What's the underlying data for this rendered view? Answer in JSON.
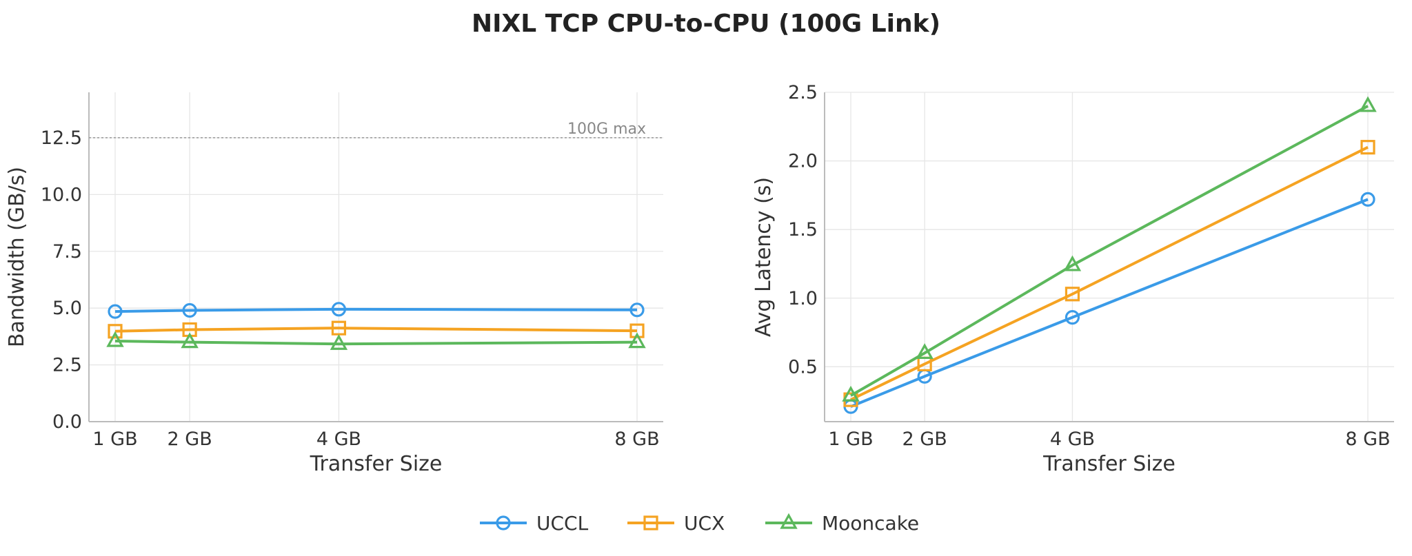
{
  "figure": {
    "title": "NIXL TCP CPU-to-CPU (100G Link)"
  },
  "colors": {
    "UCCL": "#3a9be8",
    "UCX": "#f5a322",
    "Mooncake": "#5cb85c"
  },
  "legend": {
    "placement": "bottom-center",
    "entries": [
      "UCCL",
      "UCX",
      "Mooncake"
    ]
  },
  "chart_data": [
    {
      "type": "line",
      "xlabel": "Transfer Size",
      "ylabel": "Bandwidth (GB/s)",
      "x": [
        1,
        2,
        4,
        8
      ],
      "xticklabels": [
        "1 GB",
        "2 GB",
        "4 GB",
        "8 GB"
      ],
      "ylim": [
        0,
        14.5
      ],
      "yticks": [
        0,
        2.5,
        5,
        7.5,
        10,
        12.5
      ],
      "yticklabels": [
        "0.0",
        "2.5",
        "5.0",
        "7.5",
        "10.0",
        "12.5"
      ],
      "grid": true,
      "reference_line": {
        "y": 12.5,
        "label": "100G max"
      },
      "series": [
        {
          "name": "UCCL",
          "marker": "circle",
          "values": [
            4.85,
            4.9,
            4.95,
            4.92
          ]
        },
        {
          "name": "UCX",
          "marker": "square",
          "values": [
            3.98,
            4.05,
            4.12,
            4.0
          ]
        },
        {
          "name": "Mooncake",
          "marker": "triangle",
          "values": [
            3.55,
            3.5,
            3.42,
            3.5
          ]
        }
      ]
    },
    {
      "type": "line",
      "xlabel": "Transfer Size",
      "ylabel": "Avg Latency (s)",
      "x": [
        1,
        2,
        4,
        8
      ],
      "xticklabels": [
        "1 GB",
        "2 GB",
        "4 GB",
        "8 GB"
      ],
      "ylim": [
        0.1,
        2.5
      ],
      "yticks": [
        0.5,
        1.0,
        1.5,
        2.0,
        2.5
      ],
      "yticklabels": [
        "0.5",
        "1.0",
        "1.5",
        "2.0",
        "2.5"
      ],
      "grid": true,
      "series": [
        {
          "name": "UCCL",
          "marker": "circle",
          "values": [
            0.21,
            0.43,
            0.86,
            1.72
          ]
        },
        {
          "name": "UCX",
          "marker": "square",
          "values": [
            0.26,
            0.52,
            1.03,
            2.1
          ]
        },
        {
          "name": "Mooncake",
          "marker": "triangle",
          "values": [
            0.29,
            0.6,
            1.24,
            2.4
          ]
        }
      ]
    }
  ]
}
